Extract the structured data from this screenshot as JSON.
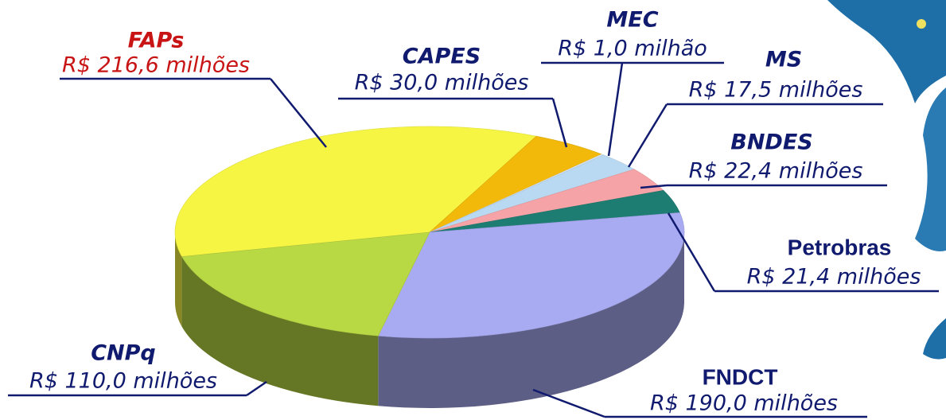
{
  "chart_data": {
    "type": "pie",
    "categories": [
      "FAPs",
      "CAPES",
      "MEC",
      "MS",
      "BNDES",
      "Petrobras",
      "FNDCT",
      "CNPq"
    ],
    "values": [
      216.6,
      30.0,
      1.0,
      17.5,
      22.4,
      21.4,
      190.0,
      110.0
    ],
    "value_labels": [
      "R$ 216,6 milhões",
      "R$ 30,0 milhões",
      "R$ 1,0 milhão",
      "R$ 17,5 milhões",
      "R$ 22,4 milhões",
      "R$ 21,4 milhões",
      "R$ 190,0 milhões",
      "R$ 110,0 milhões"
    ],
    "colors": [
      "#f6f544",
      "#f2b90a",
      "#dbe8f4",
      "#b9d9f2",
      "#f5a3a6",
      "#1d7d72",
      "#a9abf2",
      "#b8d844"
    ]
  }
}
